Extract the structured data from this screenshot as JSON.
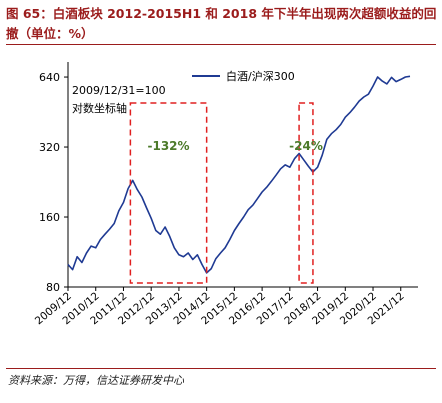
{
  "figure": {
    "title": "图 65：白酒板块 2012-2015H1 和 2018 年下半年出现两次超额收益的回撤（单位：%）",
    "source": "资料来源：万得，信达证券研发中心"
  },
  "chart_data": {
    "type": "line",
    "title": "",
    "xlabel": "",
    "ylabel": "",
    "y_scale": "log",
    "ylim": [
      80,
      700
    ],
    "y_ticks": [
      80,
      160,
      320,
      640
    ],
    "x_ticks": [
      "2009/12",
      "2010/12",
      "2011/12",
      "2012/12",
      "2013/12",
      "2014/12",
      "2015/12",
      "2016/12",
      "2017/12",
      "2018/12",
      "2019/12",
      "2020/12",
      "2021/12"
    ],
    "xlim": [
      "2009/12",
      "2022/04"
    ],
    "axis_note_1": "2009/12/31=100",
    "axis_note_2": "对数坐标轴",
    "legend_position": "top-right",
    "series": [
      {
        "name": "白酒/沪深300",
        "color": "#1f3a93",
        "x": [
          "2009/12",
          "2010/02",
          "2010/04",
          "2010/06",
          "2010/08",
          "2010/10",
          "2010/12",
          "2011/02",
          "2011/04",
          "2011/06",
          "2011/08",
          "2011/10",
          "2011/12",
          "2012/02",
          "2012/04",
          "2012/06",
          "2012/08",
          "2012/10",
          "2012/12",
          "2013/02",
          "2013/04",
          "2013/06",
          "2013/08",
          "2013/10",
          "2013/12",
          "2014/02",
          "2014/04",
          "2014/06",
          "2014/08",
          "2014/10",
          "2014/12",
          "2015/02",
          "2015/04",
          "2015/06",
          "2015/08",
          "2015/10",
          "2015/12",
          "2016/02",
          "2016/04",
          "2016/06",
          "2016/08",
          "2016/10",
          "2016/12",
          "2017/02",
          "2017/04",
          "2017/06",
          "2017/08",
          "2017/10",
          "2017/12",
          "2018/02",
          "2018/04",
          "2018/06",
          "2018/08",
          "2018/10",
          "2018/12",
          "2019/02",
          "2019/04",
          "2019/06",
          "2019/08",
          "2019/10",
          "2019/12",
          "2020/02",
          "2020/04",
          "2020/06",
          "2020/08",
          "2020/10",
          "2020/12",
          "2021/02",
          "2021/04",
          "2021/06",
          "2021/08",
          "2021/10",
          "2021/12",
          "2022/02",
          "2022/04"
        ],
        "values": [
          100,
          95,
          108,
          102,
          112,
          120,
          118,
          128,
          135,
          142,
          150,
          170,
          185,
          212,
          230,
          210,
          195,
          175,
          158,
          140,
          135,
          145,
          132,
          118,
          110,
          108,
          112,
          105,
          110,
          100,
          92,
          96,
          106,
          112,
          118,
          128,
          140,
          150,
          160,
          172,
          180,
          192,
          205,
          215,
          228,
          242,
          258,
          268,
          262,
          285,
          300,
          282,
          265,
          250,
          262,
          295,
          345,
          365,
          380,
          400,
          430,
          450,
          475,
          505,
          525,
          540,
          585,
          640,
          615,
          598,
          638,
          612,
          625,
          640,
          645
        ]
      }
    ],
    "annotations": [
      {
        "text": "-132%",
        "color": "#4c7a2a",
        "x_from": "2012/03",
        "x_to": "2014/12"
      },
      {
        "text": "-24%",
        "color": "#4c7a2a",
        "x_from": "2018/04",
        "x_to": "2018/10"
      }
    ]
  }
}
